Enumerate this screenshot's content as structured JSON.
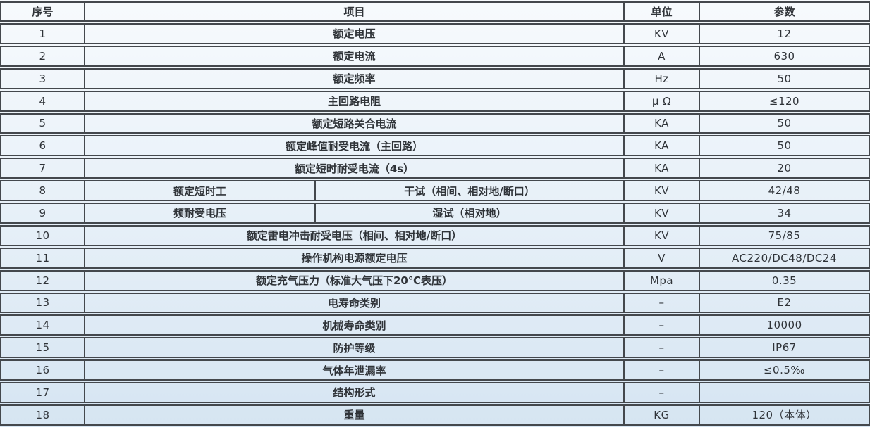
{
  "colors": {
    "background_top": "#f7fafd",
    "background_bottom": "#d6e5f2",
    "border": "#44484d",
    "text": "#2f3338"
  },
  "table": {
    "headers": {
      "index": "序号",
      "item": "项目",
      "unit": "单位",
      "parameter": "参数"
    },
    "rows": [
      {
        "no": "1",
        "item": "额定电压",
        "unit": "KV",
        "param": "12"
      },
      {
        "no": "2",
        "item": "额定电流",
        "unit": "A",
        "param": "630"
      },
      {
        "no": "3",
        "item": "额定频率",
        "unit": "Hz",
        "param": "50"
      },
      {
        "no": "4",
        "item": "主回路电阻",
        "unit": "μ Ω",
        "param": "≤120"
      },
      {
        "no": "5",
        "item": "额定短路关合电流",
        "unit": "KA",
        "param": "50"
      },
      {
        "no": "6",
        "item": "额定峰值耐受电流（主回路）",
        "unit": "KA",
        "param": "50"
      },
      {
        "no": "7",
        "item": "额定短时耐受电流（4s）",
        "unit": "KA",
        "param": "20"
      },
      {
        "no": "8",
        "item_left": "额定短时工",
        "item_right": "干试（相间、相对地/断口）",
        "item_right_align": "left",
        "unit": "KV",
        "param": "42/48"
      },
      {
        "no": "9",
        "item_left": "频耐受电压",
        "item_right": "湿试（相对地）",
        "item_right_align": "center",
        "unit": "KV",
        "param": "34"
      },
      {
        "no": "10",
        "item": "额定雷电冲击耐受电压（相间、相对地/断口）",
        "unit": "KV",
        "param": "75/85"
      },
      {
        "no": "11",
        "item": "操作机构电源额定电压",
        "unit": "V",
        "param": "AC220/DC48/DC24"
      },
      {
        "no": "12",
        "item": "额定充气压力（标准大气压下20℃表压）",
        "unit": "Mpa",
        "param": "0.35"
      },
      {
        "no": "13",
        "item": "电寿命类别",
        "unit": "–",
        "param": "E2"
      },
      {
        "no": "14",
        "item": "机械寿命类别",
        "unit": "–",
        "param": "10000"
      },
      {
        "no": "15",
        "item": "防护等级",
        "unit": "–",
        "param": "IP67"
      },
      {
        "no": "16",
        "item": "气体年泄漏率",
        "unit": "–",
        "param": "≤0.5‰"
      },
      {
        "no": "17",
        "item": "结构形式",
        "unit": "–",
        "param": ""
      },
      {
        "no": "18",
        "item": "重量",
        "unit": "KG",
        "param": "120（本体）"
      }
    ]
  }
}
